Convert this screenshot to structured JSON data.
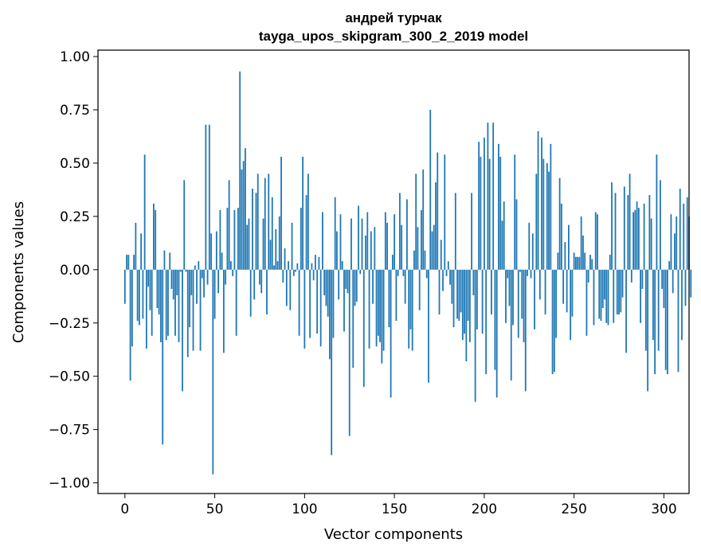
{
  "chart_data": {
    "type": "bar",
    "title": "андрей турчак",
    "subtitle": "tayga_upos_skipgram_300_2_2019 model",
    "xlabel": "Vector components",
    "ylabel": "Components values",
    "xlim": [
      -15,
      314
    ],
    "ylim": [
      -1.05,
      1.03
    ],
    "xticks": [
      0,
      50,
      100,
      150,
      200,
      250,
      300
    ],
    "yticks": [
      1.0,
      0.75,
      0.5,
      0.25,
      0.0,
      -0.25,
      -0.5,
      -0.75,
      -1.0
    ],
    "xtick_labels": [
      "0",
      "50",
      "100",
      "150",
      "200",
      "250",
      "300"
    ],
    "ytick_labels": [
      "1.00",
      "0.75",
      "0.50",
      "0.25",
      "0.00",
      "−0.25",
      "−0.50",
      "−0.75",
      "−1.00"
    ],
    "bar_color": "#1f77b4",
    "grid": false,
    "values": [
      -0.16,
      0.07,
      0.07,
      -0.52,
      -0.36,
      0.07,
      0.22,
      -0.24,
      -0.26,
      0.17,
      -0.23,
      0.54,
      -0.37,
      -0.08,
      -0.19,
      -0.31,
      0.31,
      0.28,
      -0.18,
      -0.21,
      -0.34,
      -0.82,
      0.09,
      -0.33,
      -0.31,
      0.08,
      -0.09,
      -0.14,
      -0.31,
      -0.12,
      -0.34,
      -0.01,
      -0.57,
      0.42,
      -0.01,
      -0.41,
      -0.27,
      -0.12,
      -0.38,
      0.02,
      -0.16,
      0.04,
      -0.38,
      -0.04,
      -0.13,
      0.68,
      -0.07,
      0.68,
      0.17,
      -0.96,
      -0.23,
      0.18,
      -0.11,
      0.28,
      0.08,
      -0.39,
      -0.07,
      0.29,
      0.42,
      0.04,
      -0.03,
      0.28,
      -0.31,
      0.29,
      0.93,
      0.47,
      0.51,
      0.57,
      0.21,
      0.24,
      -0.22,
      0.38,
      -0.14,
      0.36,
      0.45,
      -0.07,
      -0.11,
      0.24,
      0.43,
      -0.21,
      0.45,
      0.14,
      0.34,
      0.02,
      0.19,
      0.04,
      0.25,
      0.53,
      -0.06,
      0.1,
      -0.17,
      0.04,
      -0.19,
      0.22,
      -0.03,
      -0.01,
      0.03,
      -0.31,
      0.29,
      0.53,
      -0.37,
      0.35,
      0.45,
      -0.32,
      0.03,
      -0.05,
      0.07,
      -0.3,
      0.06,
      -0.36,
      0.27,
      -0.12,
      -0.17,
      -0.22,
      -0.42,
      -0.87,
      -0.32,
      0.34,
      0.18,
      -0.14,
      0.26,
      0.04,
      -0.29,
      -0.09,
      -0.11,
      -0.78,
      0.24,
      -0.46,
      -0.17,
      -0.15,
      0.3,
      -0.02,
      0.24,
      -0.55,
      0.16,
      0.27,
      -0.37,
      0.18,
      -0.16,
      0.2,
      -0.36,
      -0.31,
      -0.34,
      -0.44,
      -0.38,
      0.27,
      0.22,
      -0.27,
      -0.6,
      0.07,
      0.26,
      -0.24,
      -0.03,
      0.36,
      0.21,
      -0.03,
      -0.16,
      0.33,
      -0.37,
      -0.28,
      -0.38,
      0.09,
      0.45,
      0.2,
      -0.19,
      0.28,
      0.47,
      0.09,
      -0.04,
      -0.53,
      0.75,
      0.18,
      0.21,
      0.41,
      0.55,
      -0.21,
      0.14,
      -0.1,
      0.54,
      -0.03,
      0.04,
      -0.07,
      -0.16,
      -0.27,
      0.36,
      -0.23,
      -0.24,
      -0.2,
      -0.33,
      -0.3,
      -0.43,
      -0.24,
      -0.34,
      0.36,
      -0.12,
      -0.62,
      -0.28,
      0.6,
      0.53,
      -0.3,
      0.62,
      -0.49,
      0.69,
      0.52,
      -0.21,
      0.69,
      -0.47,
      -0.6,
      0.59,
      0.53,
      0.23,
      0.32,
      -0.25,
      -0.04,
      -0.17,
      -0.52,
      -0.26,
      0.54,
      0.33,
      -0.32,
      -0.01,
      -0.23,
      -0.34,
      -0.57,
      -0.03,
      0.22,
      -0.04,
      0.17,
      -0.28,
      0.45,
      0.65,
      -0.14,
      0.62,
      0.52,
      -0.21,
      0.5,
      0.46,
      0.59,
      -0.49,
      -0.48,
      -0.32,
      0.08,
      0.43,
      0.31,
      -0.16,
      0.13,
      -0.2,
      0.21,
      -0.33,
      -0.22,
      0.08,
      0.06,
      0.06,
      0.06,
      0.25,
      0.16,
      0.08,
      -0.31,
      -0.06,
      0.07,
      0.05,
      -0.26,
      0.27,
      0.26,
      -0.23,
      -0.24,
      -0.18,
      -0.14,
      -0.25,
      -0.26,
      0.07,
      0.41,
      -0.25,
      0.36,
      -0.21,
      -0.21,
      -0.2,
      -0.13,
      0.39,
      -0.39,
      0.35,
      0.45,
      -0.06,
      0.27,
      0.28,
      0.32,
      0.29,
      -0.25,
      -0.09,
      0.31,
      -0.38,
      -0.57,
      0.35,
      0.24,
      -0.33,
      -0.49,
      0.54,
      -0.38,
      0.42,
      -0.09,
      -0.18,
      -0.47,
      -0.49,
      0.04,
      0.26,
      -0.11,
      0.17,
      0.25,
      -0.48,
      0.38,
      -0.33,
      0.31,
      -0.17,
      0.34,
      0.25,
      -0.13
    ]
  }
}
